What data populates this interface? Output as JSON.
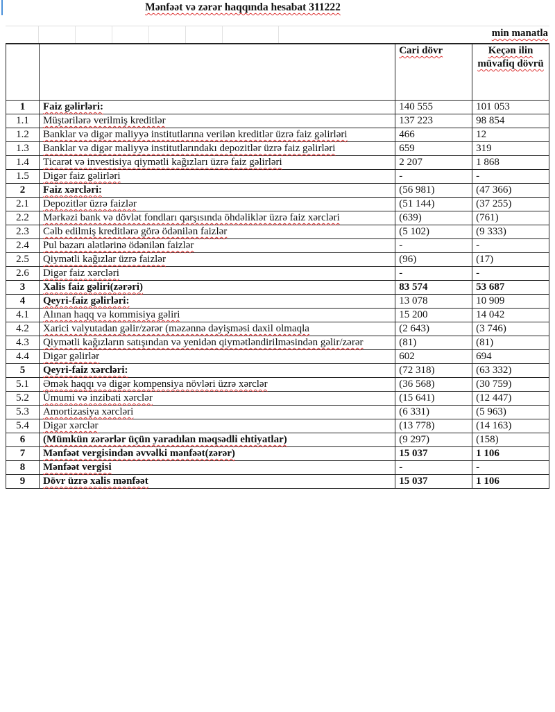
{
  "title": "Mənfəət və zərər haqqında hesabat 311222",
  "unit": "min manatla",
  "header": {
    "current": "Cari dövr",
    "previous": "Keçən ilin müvafiq dövrü"
  },
  "rows": [
    {
      "n": "1",
      "label": "Faiz gəlirləri:",
      "cur": "140 555",
      "prev": "101 053",
      "style": "b"
    },
    {
      "n": "1.1",
      "label": "Müştərilərə verilmiş kreditlər",
      "cur": "137 223",
      "prev": "98 854"
    },
    {
      "n": "1.2",
      "label": "Banklar və digər maliyyə institutlarına verilən kreditlər üzrə faiz gəlirləri",
      "cur": "466",
      "prev": "12"
    },
    {
      "n": "1.3",
      "label": "Banklar və digər maliyyə institutlarındakı depozitlər üzrə faiz gəlirləri",
      "cur": "659",
      "prev": "319"
    },
    {
      "n": "1.4",
      "label": "Ticarət və investisiya qiymətli kağızları üzrə faiz gəlirləri",
      "cur": "2 207",
      "prev": "1 868"
    },
    {
      "n": "1.5",
      "label": "Digər faiz gəlirləri",
      "cur": "-",
      "prev": "-"
    },
    {
      "n": "2",
      "label": "Faiz xərcləri:",
      "cur": "(56 981)",
      "prev": "(47 366)",
      "style": "b"
    },
    {
      "n": "2.1",
      "label": "Depozitlər üzrə faizlər",
      "cur": "(51 144)",
      "prev": "(37 255)"
    },
    {
      "n": "2.2",
      "label": "Mərkəzi bank və dövlət fondları qarşısında öhdəliklər üzrə faiz xərcləri",
      "cur": "(639)",
      "prev": "(761)"
    },
    {
      "n": "2.3",
      "label": "Cəlb edilmiş kreditlərə görə ödənilən faizlər",
      "cur": "(5 102)",
      "prev": "(9 333)"
    },
    {
      "n": "2.4",
      "label": "Pul bazarı alətlərinə ödənilən faizlər",
      "cur": "-",
      "prev": "-"
    },
    {
      "n": "2.5",
      "label": "Qiymətli kağızlar üzrə faizlər",
      "cur": "(96)",
      "prev": "(17)"
    },
    {
      "n": "2.6",
      "label": "Digər faiz xərcləri",
      "cur": "-",
      "prev": "-"
    },
    {
      "n": "3",
      "label": "Xalis faiz gəliri(zərəri)",
      "cur": "83 574",
      "prev": "53 687",
      "style": "bv"
    },
    {
      "n": "4",
      "label": "Qeyri-faiz gəlirləri:",
      "cur": "13 078",
      "prev": "10 909",
      "style": "b"
    },
    {
      "n": "4.1",
      "label": "Alınan haqq və kommisiya gəliri",
      "cur": "15 200",
      "prev": "14 042"
    },
    {
      "n": "4.2",
      "label": "Xarici valyutadan gəlir/zərər (məzənnə dəyişməsi daxil olmaqla",
      "cur": "(2 643)",
      "prev": "(3 746)"
    },
    {
      "n": "4.3",
      "label": "Qiymətli kağızların satışından və yenidən qiymətləndirilməsindən gəlir/zərər",
      "cur": "(81)",
      "prev": "(81)"
    },
    {
      "n": "4.4",
      "label": "Digər gəlirlər",
      "cur": "602",
      "prev": "694"
    },
    {
      "n": "5",
      "label": "Qeyri-faiz xərcləri:",
      "cur": "(72 318)",
      "prev": "(63 332)",
      "style": "b"
    },
    {
      "n": "5.1",
      "label": "Əmək haqqı və digər kompensiya növləri üzrə xərclər",
      "cur": "(36 568)",
      "prev": "(30 759)"
    },
    {
      "n": "5.2",
      "label": "Ümumi və inzibati xərclər",
      "cur": "(15 641)",
      "prev": "(12 447)"
    },
    {
      "n": "5.3",
      "label": "Amortizasiya xərcləri",
      "cur": "(6 331)",
      "prev": "(5 963)"
    },
    {
      "n": "5.4",
      "label": "Digər xərclər",
      "cur": "(13 778)",
      "prev": "(14 163)"
    },
    {
      "n": "6",
      "label": "(Mümkün zərərlər üçün yaradılan məqsədli ehtiyatlar)",
      "cur": "(9 297)",
      "prev": "(158)",
      "style": "b"
    },
    {
      "n": "7",
      "label": "Mənfəət vergisindən əvvəlki mənfəət(zərər)",
      "cur": "15 037",
      "prev": "1 106",
      "style": "bv"
    },
    {
      "n": "8",
      "label": "Mənfəət vergisi",
      "cur": "-",
      "prev": "-",
      "style": "b"
    },
    {
      "n": "9",
      "label": "Dövr üzrə xalis mənfəət",
      "cur": "15 037",
      "prev": "1 106",
      "style": "bv"
    }
  ]
}
